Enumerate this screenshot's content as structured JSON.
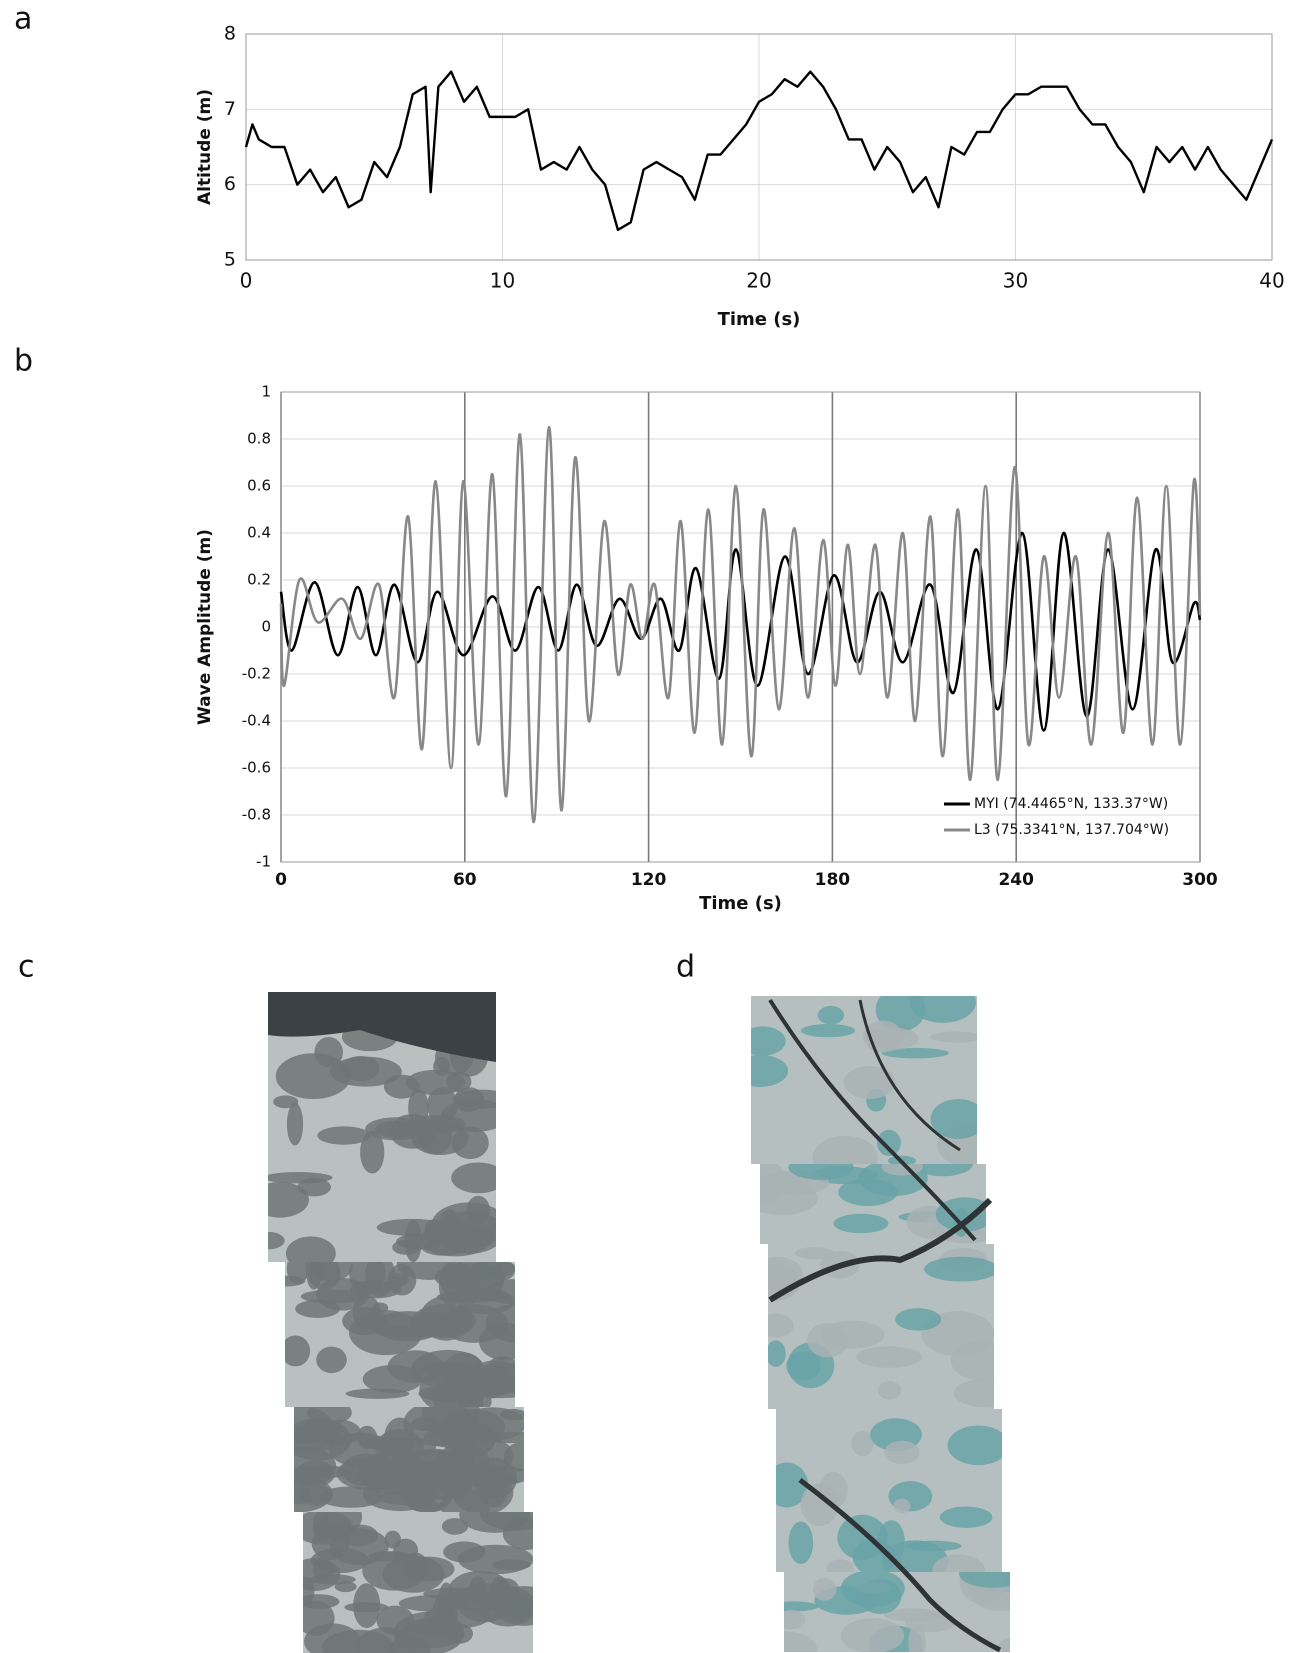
{
  "panel_labels": [
    "a",
    "b",
    "c",
    "d"
  ],
  "chart_data": [
    {
      "type": "line",
      "xlabel": "Time (s)",
      "ylabel": "Altitude (m)",
      "color": "#000000",
      "x": [
        0,
        0.25,
        0.5,
        1,
        1.5,
        2,
        2.5,
        3,
        3.5,
        4,
        4.5,
        5,
        5.5,
        6,
        6.5,
        7,
        7.2,
        7.5,
        8,
        8.5,
        9,
        9.5,
        10,
        10.5,
        11,
        11.5,
        12,
        12.5,
        13,
        13.5,
        14,
        14.5,
        15,
        15.5,
        16,
        16.5,
        17,
        17.5,
        18,
        18.5,
        19,
        19.5,
        20,
        20.5,
        21,
        21.5,
        22,
        22.5,
        23,
        23.5,
        24,
        24.5,
        25,
        25.5,
        26,
        26.5,
        27,
        27.5,
        28,
        28.5,
        29,
        29.5,
        30,
        30.5,
        31,
        31.5,
        32,
        32.5,
        33,
        33.5,
        34,
        34.5,
        35,
        35.5,
        36,
        36.5,
        37,
        37.5,
        38,
        38.5,
        39,
        39.5,
        40
      ],
      "values": [
        6.5,
        6.8,
        6.6,
        6.5,
        6.5,
        6.0,
        6.2,
        5.9,
        6.1,
        5.7,
        5.8,
        6.3,
        6.1,
        6.5,
        7.2,
        7.3,
        5.9,
        7.3,
        7.5,
        7.1,
        7.3,
        6.9,
        6.9,
        6.9,
        7.0,
        6.2,
        6.3,
        6.2,
        6.5,
        6.2,
        6.0,
        5.4,
        5.5,
        6.2,
        6.3,
        6.2,
        6.1,
        5.8,
        6.4,
        6.4,
        6.6,
        6.8,
        7.1,
        7.2,
        7.4,
        7.3,
        7.5,
        7.3,
        7.0,
        6.6,
        6.6,
        6.2,
        6.5,
        6.3,
        5.9,
        6.1,
        5.7,
        6.5,
        6.4,
        6.7,
        6.7,
        7.0,
        7.2,
        7.2,
        7.3,
        7.3,
        7.3,
        7.0,
        6.8,
        6.8,
        6.5,
        6.3,
        5.9,
        6.5,
        6.3,
        6.5,
        6.2,
        6.5,
        6.2,
        6.0,
        5.8,
        6.2,
        6.6
      ],
      "xlim": [
        0,
        40
      ],
      "xticks": [
        0,
        10,
        20,
        30,
        40
      ],
      "ylim": [
        5,
        8
      ],
      "yticks": [
        5,
        6,
        7,
        8
      ],
      "grid": true
    },
    {
      "type": "line",
      "xlabel": "Time (s)",
      "ylabel": "Wave Amplitude (m)",
      "legend": "lower right",
      "grid": true,
      "xlim": [
        0,
        300
      ],
      "xticks": [
        0,
        60,
        120,
        180,
        240,
        300
      ],
      "ylim": [
        -1,
        1
      ],
      "yticks": [
        -1,
        -0.8,
        -0.6,
        -0.4,
        -0.2,
        0,
        0.2,
        0.4,
        0.6,
        0.8,
        1
      ],
      "series": [
        {
          "name": "MYI (74.4465°N, 133.37°W)",
          "color": "#000000",
          "x": [
            0,
            3.5,
            11,
            18.5,
            25,
            31,
            37,
            44.5,
            51,
            59.5,
            69,
            76.5,
            84,
            90.5,
            96.5,
            103,
            110.5,
            117.5,
            124,
            130,
            135.5,
            143,
            148.5,
            155.5,
            164.5,
            172,
            180.5,
            188,
            195.5,
            203,
            212,
            219.5,
            227,
            234,
            242,
            249,
            255.5,
            263,
            270,
            278,
            285.5,
            291,
            298,
            300
          ],
          "values": [
            0.15,
            -0.1,
            0.19,
            -0.12,
            0.17,
            -0.12,
            0.18,
            -0.15,
            0.15,
            -0.12,
            0.13,
            -0.1,
            0.17,
            -0.1,
            0.18,
            -0.08,
            0.12,
            -0.05,
            0.12,
            -0.1,
            0.25,
            -0.22,
            0.33,
            -0.25,
            0.3,
            -0.2,
            0.22,
            -0.15,
            0.15,
            -0.15,
            0.18,
            -0.28,
            0.33,
            -0.35,
            0.4,
            -0.44,
            0.4,
            -0.38,
            0.33,
            -0.35,
            0.33,
            -0.15,
            0.1,
            0.03
          ]
        },
        {
          "name": "L3 (75.3341°N, 137.704°W)",
          "color": "#888888",
          "x": [
            0,
            1,
            6,
            12,
            20,
            26,
            32,
            37,
            41.5,
            46,
            50.5,
            55.5,
            59.5,
            64.5,
            69,
            73.5,
            78,
            82.5,
            87.5,
            91.5,
            96,
            100.5,
            105.5,
            110,
            114,
            118,
            122,
            126.5,
            130.5,
            135,
            139.5,
            144,
            148.5,
            153.5,
            157.5,
            162.5,
            167.5,
            172,
            177,
            181,
            185,
            189,
            194,
            198,
            203,
            207,
            212,
            216,
            221,
            225,
            230,
            234,
            239.5,
            244,
            249,
            254,
            259.5,
            264.5,
            270,
            275,
            279.5,
            284.5,
            289,
            293.5,
            298,
            300
          ],
          "values": [
            0.1,
            -0.25,
            0.2,
            0.02,
            0.12,
            -0.05,
            0.18,
            -0.3,
            0.47,
            -0.52,
            0.62,
            -0.6,
            0.62,
            -0.5,
            0.65,
            -0.72,
            0.82,
            -0.83,
            0.85,
            -0.78,
            0.72,
            -0.4,
            0.45,
            -0.2,
            0.18,
            -0.05,
            0.18,
            -0.3,
            0.45,
            -0.45,
            0.5,
            -0.5,
            0.6,
            -0.55,
            0.5,
            -0.35,
            0.42,
            -0.3,
            0.37,
            -0.25,
            0.35,
            -0.2,
            0.35,
            -0.3,
            0.4,
            -0.4,
            0.47,
            -0.55,
            0.5,
            -0.65,
            0.6,
            -0.65,
            0.68,
            -0.5,
            0.3,
            -0.3,
            0.3,
            -0.5,
            0.4,
            -0.45,
            0.55,
            -0.5,
            0.6,
            -0.5,
            0.62,
            0.05
          ]
        }
      ]
    }
  ]
}
